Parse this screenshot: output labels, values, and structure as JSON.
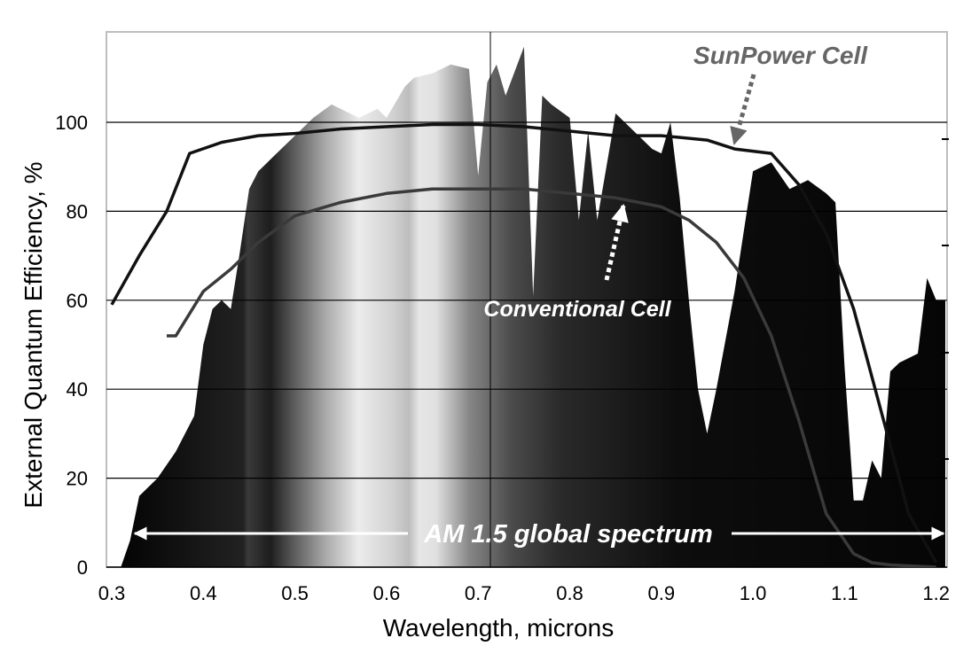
{
  "chart_data": {
    "type": "area",
    "title": "",
    "xlabel": "Wavelength, microns",
    "ylabel": "External Quantum Efficiency, %",
    "xlim": [
      0.3,
      1.21
    ],
    "ylim": [
      0,
      120
    ],
    "x_ticks": [
      "0.3",
      "0.4",
      "0.5",
      "0.6",
      "0.7",
      "0.8",
      "0.9",
      "1.0",
      "1.1",
      "1.2"
    ],
    "y_ticks": [
      "0",
      "20",
      "40",
      "60",
      "80",
      "100"
    ],
    "grid": "horizontal",
    "legend": "none",
    "colors": {
      "sunpower": "#111111",
      "conventional": "#3a3a3a",
      "spectrum": "#000000",
      "arrow": "#ffffff"
    },
    "annotations": {
      "sunpower_label": "SunPower Cell",
      "conventional_label": "Conventional Cell",
      "spectrum_label": "AM 1.5 global spectrum"
    },
    "series": [
      {
        "name": "SunPower Cell",
        "x": [
          0.3,
          0.33,
          0.36,
          0.385,
          0.42,
          0.46,
          0.5,
          0.55,
          0.6,
          0.65,
          0.7,
          0.75,
          0.8,
          0.85,
          0.9,
          0.95,
          0.98,
          1.02,
          1.05,
          1.08,
          1.11,
          1.14,
          1.17,
          1.2
        ],
        "y": [
          59,
          70,
          80,
          93,
          95.5,
          97,
          97.5,
          98.5,
          99,
          99.5,
          99.5,
          99,
          98,
          97,
          97,
          96,
          94,
          93,
          86,
          75,
          58,
          35,
          12,
          1
        ]
      },
      {
        "name": "Conventional Cell",
        "x": [
          0.36,
          0.37,
          0.4,
          0.43,
          0.46,
          0.5,
          0.55,
          0.6,
          0.65,
          0.7,
          0.75,
          0.8,
          0.85,
          0.9,
          0.93,
          0.96,
          0.99,
          1.02,
          1.05,
          1.08,
          1.11,
          1.13,
          1.15,
          1.2
        ],
        "y": [
          52,
          52,
          62,
          67,
          73,
          79,
          82,
          84,
          85,
          85,
          85,
          84,
          83,
          81,
          78,
          73,
          65,
          52,
          33,
          12,
          3,
          1,
          0.5,
          0
        ]
      }
    ],
    "spectrum": {
      "name": "AM 1.5 global spectrum",
      "x": [
        0.31,
        0.32,
        0.33,
        0.35,
        0.37,
        0.39,
        0.4,
        0.41,
        0.42,
        0.43,
        0.44,
        0.45,
        0.46,
        0.47,
        0.48,
        0.5,
        0.52,
        0.54,
        0.55,
        0.57,
        0.59,
        0.6,
        0.62,
        0.63,
        0.65,
        0.67,
        0.69,
        0.7,
        0.71,
        0.72,
        0.73,
        0.75,
        0.76,
        0.77,
        0.78,
        0.8,
        0.81,
        0.82,
        0.83,
        0.85,
        0.87,
        0.89,
        0.9,
        0.91,
        0.92,
        0.93,
        0.94,
        0.95,
        0.96,
        0.98,
        1.0,
        1.02,
        1.04,
        1.06,
        1.08,
        1.09,
        1.1,
        1.11,
        1.12,
        1.13,
        1.14,
        1.15,
        1.16,
        1.18,
        1.19,
        1.2,
        1.21
      ],
      "y": [
        0,
        6,
        16,
        20,
        26,
        34,
        50,
        58,
        60,
        58,
        71,
        85,
        89,
        91,
        93,
        97,
        101,
        104,
        103,
        101,
        103,
        101,
        108,
        110,
        111,
        113,
        112,
        88,
        109,
        113,
        106,
        117,
        61,
        106,
        104,
        101,
        78,
        98,
        78,
        102,
        98,
        94,
        93,
        100,
        83,
        60,
        40,
        30,
        40,
        62,
        89,
        91,
        85,
        87,
        84,
        82,
        45,
        15,
        15,
        24,
        20,
        44,
        46,
        48,
        65,
        60,
        60
      ]
    }
  }
}
